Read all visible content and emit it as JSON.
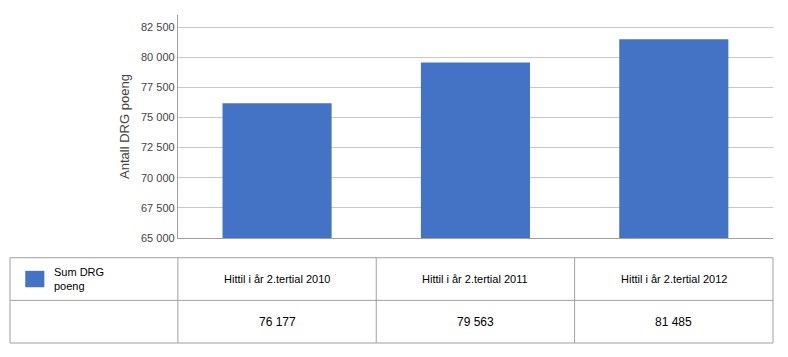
{
  "chart_data": {
    "type": "bar",
    "ylabel": "Antall DRG poeng",
    "categories": [
      "Hittil i år 2.tertial 2010",
      "Hittil i år 2.tertial 2011",
      "Hittil i år 2.tertial 2012"
    ],
    "series": [
      {
        "name": "Sum DRG\npoeng",
        "color": "#4472C4",
        "values": [
          76177,
          79563,
          81485
        ],
        "value_labels": [
          "76 177",
          "79 563",
          "81 485"
        ]
      }
    ],
    "data_labels": true,
    "legend": "bottom left",
    "ylim": [
      65000,
      83500
    ],
    "yticks": [
      {
        "value": 65000,
        "label": "65 000"
      },
      {
        "value": 67500,
        "label": "67 500"
      },
      {
        "value": 70000,
        "label": "70 000"
      },
      {
        "value": 72500,
        "label": "72 500"
      },
      {
        "value": 75000,
        "label": "75 000"
      },
      {
        "value": 77500,
        "label": "77 500"
      },
      {
        "value": 80000,
        "label": "80 000"
      },
      {
        "value": 82500,
        "label": "82 500"
      }
    ],
    "grid": true
  }
}
